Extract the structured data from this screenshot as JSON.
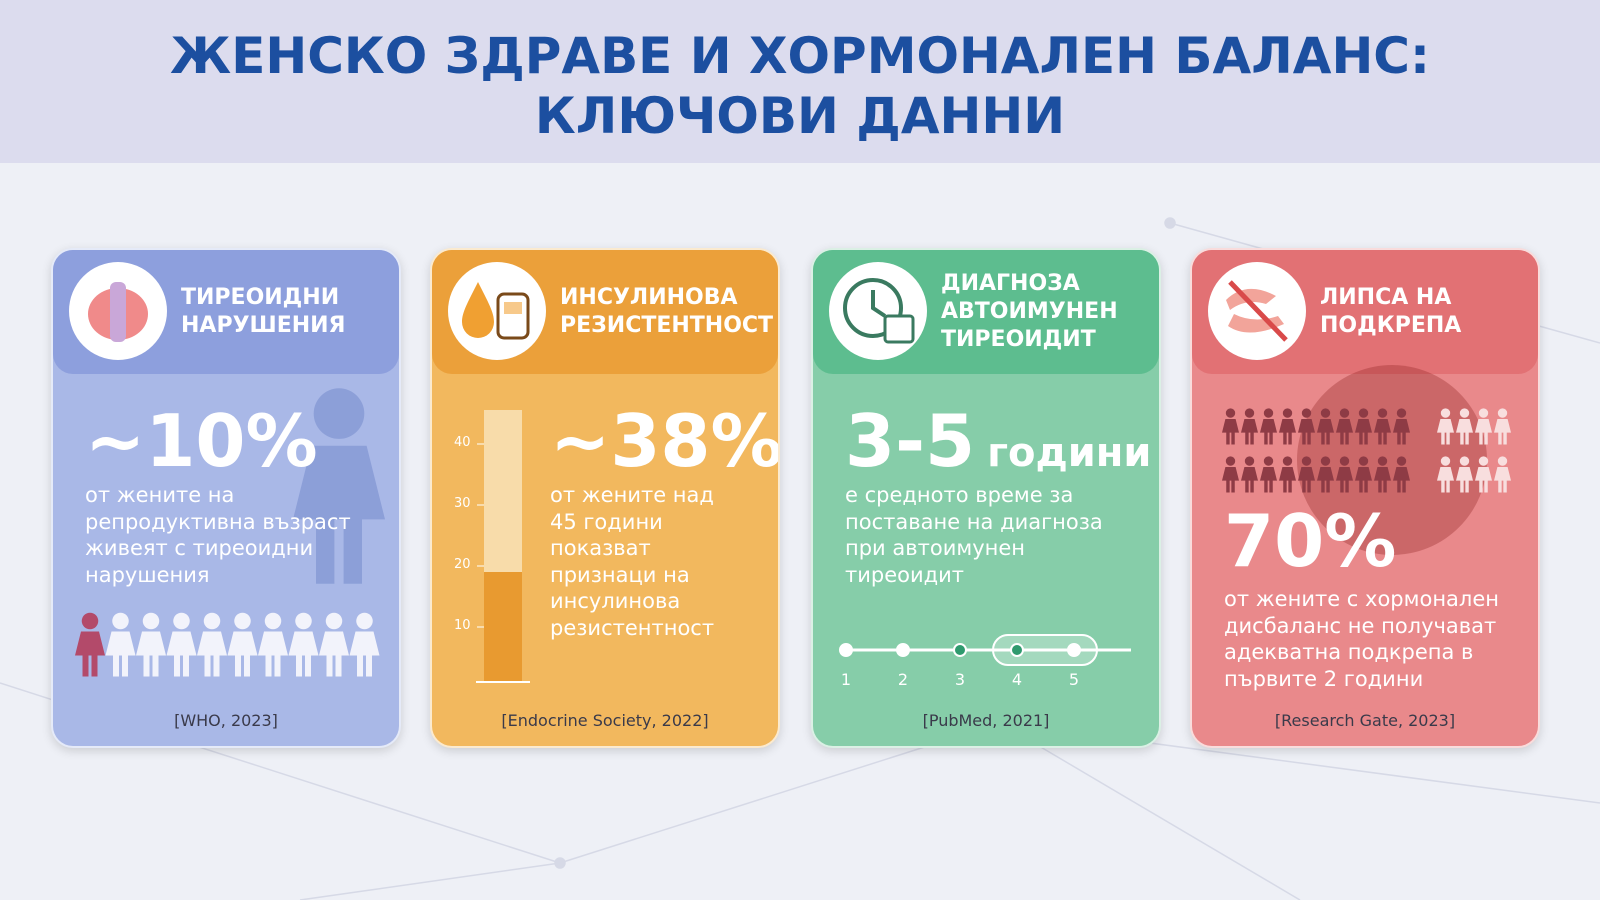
{
  "title": {
    "lines": [
      "ЖЕНСКО ЗДРАВЕ И ХОРМОНАЛЕН БАЛАНС:",
      "КЛЮЧОВИ ДАННИ"
    ]
  },
  "cards": [
    {
      "header": [
        "ТИРЕОИДНИ",
        "НАРУШЕНИЯ"
      ],
      "stat": "~10%",
      "description": [
        "от жените на",
        "репродуктивна възраст",
        "живеят с тиреоидни",
        "нарушения"
      ],
      "source": "[WHO, 2023]"
    },
    {
      "header": [
        "ИНСУЛИНОВА",
        "РЕЗИСТЕНТНОСТ"
      ],
      "stat": "~38%",
      "gauge_ticks": [
        40,
        30,
        20,
        10
      ],
      "description": [
        "от жените над",
        "45 години",
        "показват",
        "признаци на",
        "инсулинова",
        "резистентност"
      ],
      "source": "[Endocrine Society, 2022]"
    },
    {
      "header": [
        "ДИАГНОЗА",
        "АВТОИМУНЕН",
        "ТИРЕОИДИТ"
      ],
      "stat": "3-5",
      "stat_unit": "години",
      "description": [
        "е средното време за",
        "поставане на диагноза",
        "при автоимунен",
        "тиреоидит"
      ],
      "timeline": [
        1,
        2,
        3,
        4,
        5
      ],
      "source": "[PubMed, 2021]"
    },
    {
      "header": [
        "ЛИПСА НА",
        "ПОДКРЕПА"
      ],
      "stat": "70%",
      "description": [
        "от жените с хормонален",
        "дисбаланс не получават",
        "адекватна подкрепа в",
        "първите 2 години"
      ],
      "source": "[Research Gate, 2023]"
    }
  ]
}
